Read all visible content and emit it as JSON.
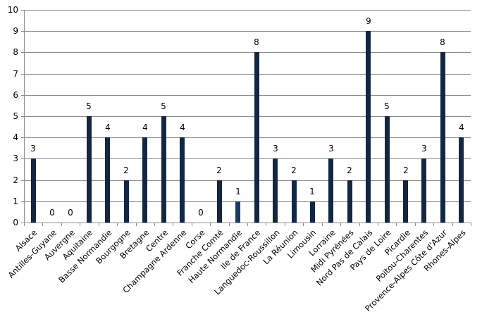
{
  "chart_data": {
    "type": "bar",
    "title": "",
    "xlabel": "",
    "ylabel": "",
    "ylim": [
      0,
      10
    ],
    "yticks": [
      0,
      1,
      2,
      3,
      4,
      5,
      6,
      7,
      8,
      9,
      10
    ],
    "grid": true,
    "legend": null,
    "data_labels": true,
    "bar_color": "#132743",
    "highlight_color": "#1c3a63",
    "highlight_index": 12,
    "categories": [
      "Alsace",
      "Antilles-Guyane",
      "Auvergne",
      "Aquitaine",
      "Basse Normandie",
      "Bourgogne",
      "Bretagne",
      "Centre",
      "Champagne Ardenne",
      "Corse",
      "Franche Comté",
      "Haute Normandie",
      "Ile  de France",
      "Languedoc-Roussillon",
      "La Réunion",
      "Limousin",
      "Lorraine",
      "Midi Pyrénées",
      "Nord Pas de Calais",
      "Pays de Loire",
      "Picardie",
      "Poitou-Charentes",
      "Provence-Alpes Côte d'Azur",
      "Rhones-Alpes"
    ],
    "values": [
      3,
      0,
      0,
      5,
      4,
      2,
      4,
      5,
      4,
      0,
      2,
      1,
      8,
      3,
      2,
      1,
      3,
      2,
      9,
      5,
      2,
      3,
      8,
      4
    ]
  }
}
